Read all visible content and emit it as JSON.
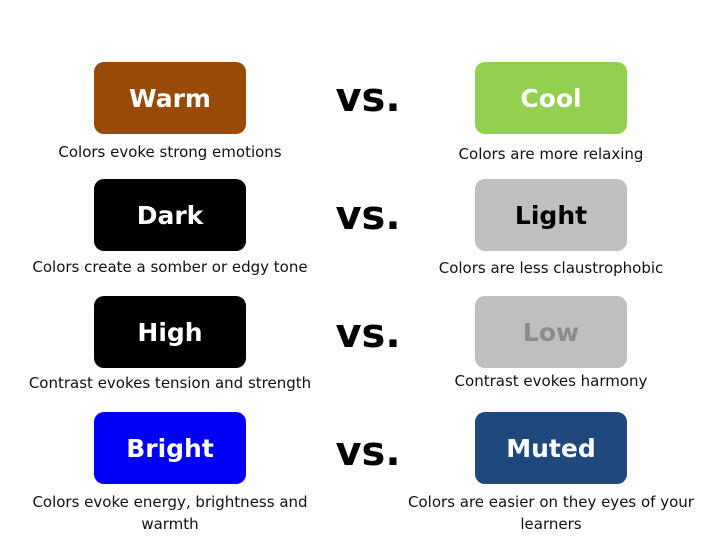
{
  "rows": [
    {
      "left": {
        "label": "Warm",
        "caption": "Colors evoke strong emotions",
        "bg": "#9a4a07",
        "fg": "#ffffff"
      },
      "vs": "vs.",
      "right": {
        "label": "Cool",
        "caption": "Colors are more relaxing",
        "bg": "#92d050",
        "fg": "#ffffff"
      }
    },
    {
      "left": {
        "label": "Dark",
        "caption": "Colors create a somber or edgy tone",
        "bg": "#000000",
        "fg": "#ffffff"
      },
      "vs": "vs.",
      "right": {
        "label": "Light",
        "caption": "Colors are less claustrophobic",
        "bg": "#bfbfbf",
        "fg": "#000000"
      }
    },
    {
      "left": {
        "label": "High",
        "caption": "Contrast evokes tension and strength",
        "bg": "#000000",
        "fg": "#ffffff"
      },
      "vs": "vs.",
      "right": {
        "label": "Low",
        "caption": "Contrast evokes harmony",
        "bg": "#bfbfbf",
        "fg": "#8c8c8c"
      }
    },
    {
      "left": {
        "label": "Bright",
        "caption": "Colors evoke energy, brightness and warmth",
        "bg": "#0000f6",
        "fg": "#ffffff"
      },
      "vs": "vs.",
      "right": {
        "label": "Muted",
        "caption": "Colors are easier on they eyes of your learners",
        "bg": "#1f497d",
        "fg": "#ffffff"
      }
    }
  ]
}
